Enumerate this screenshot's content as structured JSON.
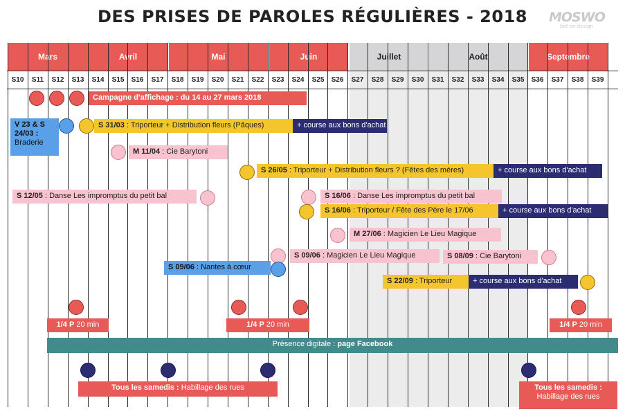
{
  "title": "DES PRISES DE PAROLES RÉGULIÈRES - 2018",
  "logo": {
    "name": "MOSWO",
    "tagline": "bet on design"
  },
  "colors": {
    "red": "#e85a55",
    "yellow": "#f5c52e",
    "pink": "#f8c2cf",
    "blue": "#5aa0e8",
    "navy": "#2c2c72",
    "teal": "#428a8c",
    "grey": "#d5d5d7"
  },
  "months": [
    "Mars",
    "Avril",
    "Mai",
    "Juin",
    "Juillet",
    "Août",
    "Septembre"
  ],
  "weeks": [
    "S10",
    "S11",
    "S12",
    "S13",
    "S14",
    "S15",
    "S16",
    "S17",
    "S18",
    "S19",
    "S20",
    "S21",
    "S22",
    "S23",
    "S24",
    "S25",
    "S26",
    "S27",
    "S28",
    "S29",
    "S30",
    "S31",
    "S32",
    "S33",
    "S34",
    "S35",
    "S36",
    "S37",
    "S38",
    "S39"
  ],
  "events": {
    "affichage": {
      "label": "Campagne d'affichage : du 14 au 27 mars 2018"
    },
    "braderie": {
      "date": "V 23 & S 24/03 :",
      "text": "Braderie"
    },
    "triporteur_paques": {
      "date": "S 31/03",
      "text": " : Triporteur + Distribution fleurs (Pâques)",
      "extra": "+ course aux bons d'achat"
    },
    "barytoni_1": {
      "date": "M 11/04",
      "text": " : Cie Barytoni"
    },
    "triporteur_meres": {
      "date": "S 26/05",
      "text": " : Triporteur + Distribution fleurs ? (Fêtes des mères)",
      "extra": "+ course aux bons d'achat"
    },
    "danse_1": {
      "date": "S 12/05",
      "text": " : Danse Les impromptus du petit bal"
    },
    "danse_2": {
      "date": "S 16/06",
      "text": " : Danse Les impromptus du petit bal"
    },
    "triporteur_peres": {
      "date": "S 16/06",
      "text": " : Triporteur / Fête des Père le 17/06",
      "extra": "+ course aux bons d'achat"
    },
    "magicien_1": {
      "date": "M 27/06",
      "text": " : Magicien Le Lieu Magique"
    },
    "magicien_2": {
      "date": "S 09/06",
      "text": " : Magicien Le Lieu Magique"
    },
    "barytoni_2": {
      "date": "S 08/09",
      "text": " : Cie Barytoni"
    },
    "nantes": {
      "date": "S 09/06",
      "text": " : Nantes à cœur"
    },
    "triporteur_sept": {
      "date": "S 22/09",
      "text": " : Triporteur",
      "extra": "+ course aux bons d'achat"
    },
    "quart_1": {
      "date": "1/4 P",
      "text": " 20 min"
    },
    "quart_2": {
      "date": "1/4 P",
      "text": " 20 min"
    },
    "quart_3": {
      "date": "1/4 P",
      "text": " 20 min"
    },
    "digital": {
      "text": "Présence digitale : ",
      "bold": "page Facebook"
    },
    "samedis_1": {
      "date": "Tous les samedis :",
      "text": " Habillage des rues"
    },
    "samedis_2": {
      "date": "Tous les samedis :",
      "text": "Habillage des rues"
    }
  }
}
